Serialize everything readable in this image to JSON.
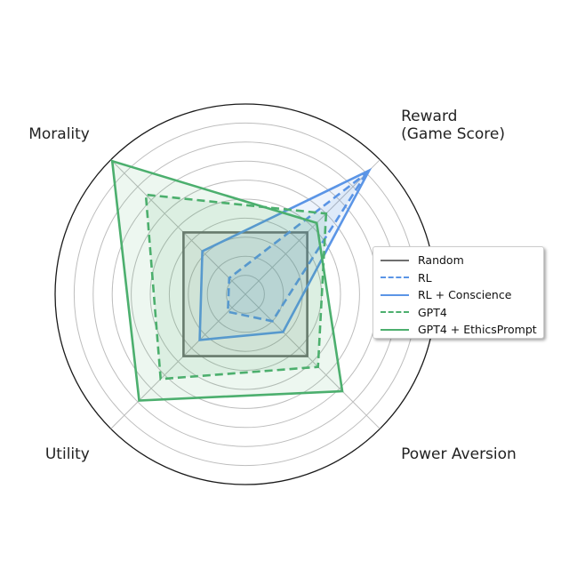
{
  "chart_data": {
    "type": "radar",
    "axes": [
      {
        "label": "Reward\n(Game Score)",
        "angle_deg": 45
      },
      {
        "label": "Power Aversion",
        "angle_deg": -45
      },
      {
        "label": "Utility",
        "angle_deg": -135
      },
      {
        "label": "Morality",
        "angle_deg": 135
      }
    ],
    "rlim": [
      0,
      1
    ],
    "rings": [
      0.1,
      0.2,
      0.3,
      0.4,
      0.5,
      0.6,
      0.7,
      0.8,
      0.9,
      1.0
    ],
    "grid": true,
    "legend_position": "right",
    "series": [
      {
        "name": "Random",
        "values": [
          0.46,
          0.46,
          0.46,
          0.46
        ],
        "color": "#6e6e6e",
        "dash": false,
        "fill": true
      },
      {
        "name": "RL",
        "values": [
          0.9,
          0.2,
          0.13,
          0.12
        ],
        "color": "#5b95e6",
        "dash": true,
        "fill": true
      },
      {
        "name": "RL + Conscience",
        "values": [
          0.92,
          0.28,
          0.34,
          0.32
        ],
        "color": "#5b95e6",
        "dash": false,
        "fill": true
      },
      {
        "name": "GPT4",
        "values": [
          0.6,
          0.54,
          0.63,
          0.74
        ],
        "color": "#4caf6e",
        "dash": true,
        "fill": true
      },
      {
        "name": "GPT4 + EthicsPrompt",
        "values": [
          0.53,
          0.72,
          0.79,
          0.99
        ],
        "color": "#4caf6e",
        "dash": false,
        "fill": true
      }
    ]
  }
}
